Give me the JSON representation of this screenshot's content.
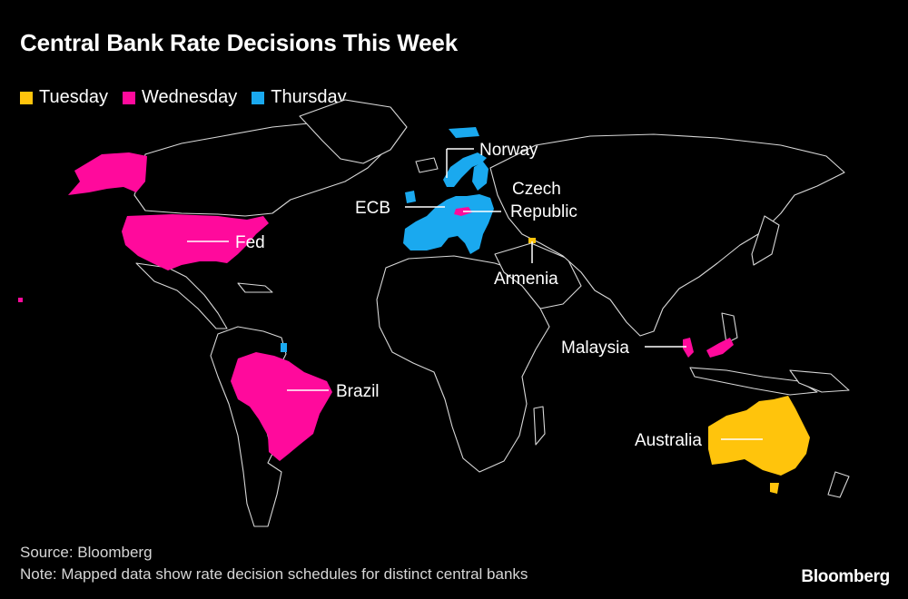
{
  "title": "Central Bank Rate Decisions This Week",
  "colors": {
    "tuesday": "#ffc40c",
    "wednesday": "#ff0a9c",
    "thursday": "#1aa9ef",
    "background": "#000000",
    "outline": "#d8d8d8"
  },
  "legend": [
    {
      "label": "Tuesday",
      "color_key": "tuesday"
    },
    {
      "label": "Wednesday",
      "color_key": "wednesday"
    },
    {
      "label": "Thursday",
      "color_key": "thursday"
    }
  ],
  "decisions": [
    {
      "label": "Fed",
      "day": "Wednesday"
    },
    {
      "label": "Brazil",
      "day": "Wednesday"
    },
    {
      "label": "Norway",
      "day": "Thursday"
    },
    {
      "label": "ECB",
      "day": "Thursday"
    },
    {
      "label": "Czech",
      "label2": "Republic",
      "day": "Wednesday"
    },
    {
      "label": "Armenia",
      "day": "Tuesday"
    },
    {
      "label": "Malaysia",
      "day": "Wednesday"
    },
    {
      "label": "Australia",
      "day": "Tuesday"
    }
  ],
  "source": "Source: Bloomberg",
  "note": "Note: Mapped data show rate decision schedules for distinct central banks",
  "brand": "Bloomberg"
}
